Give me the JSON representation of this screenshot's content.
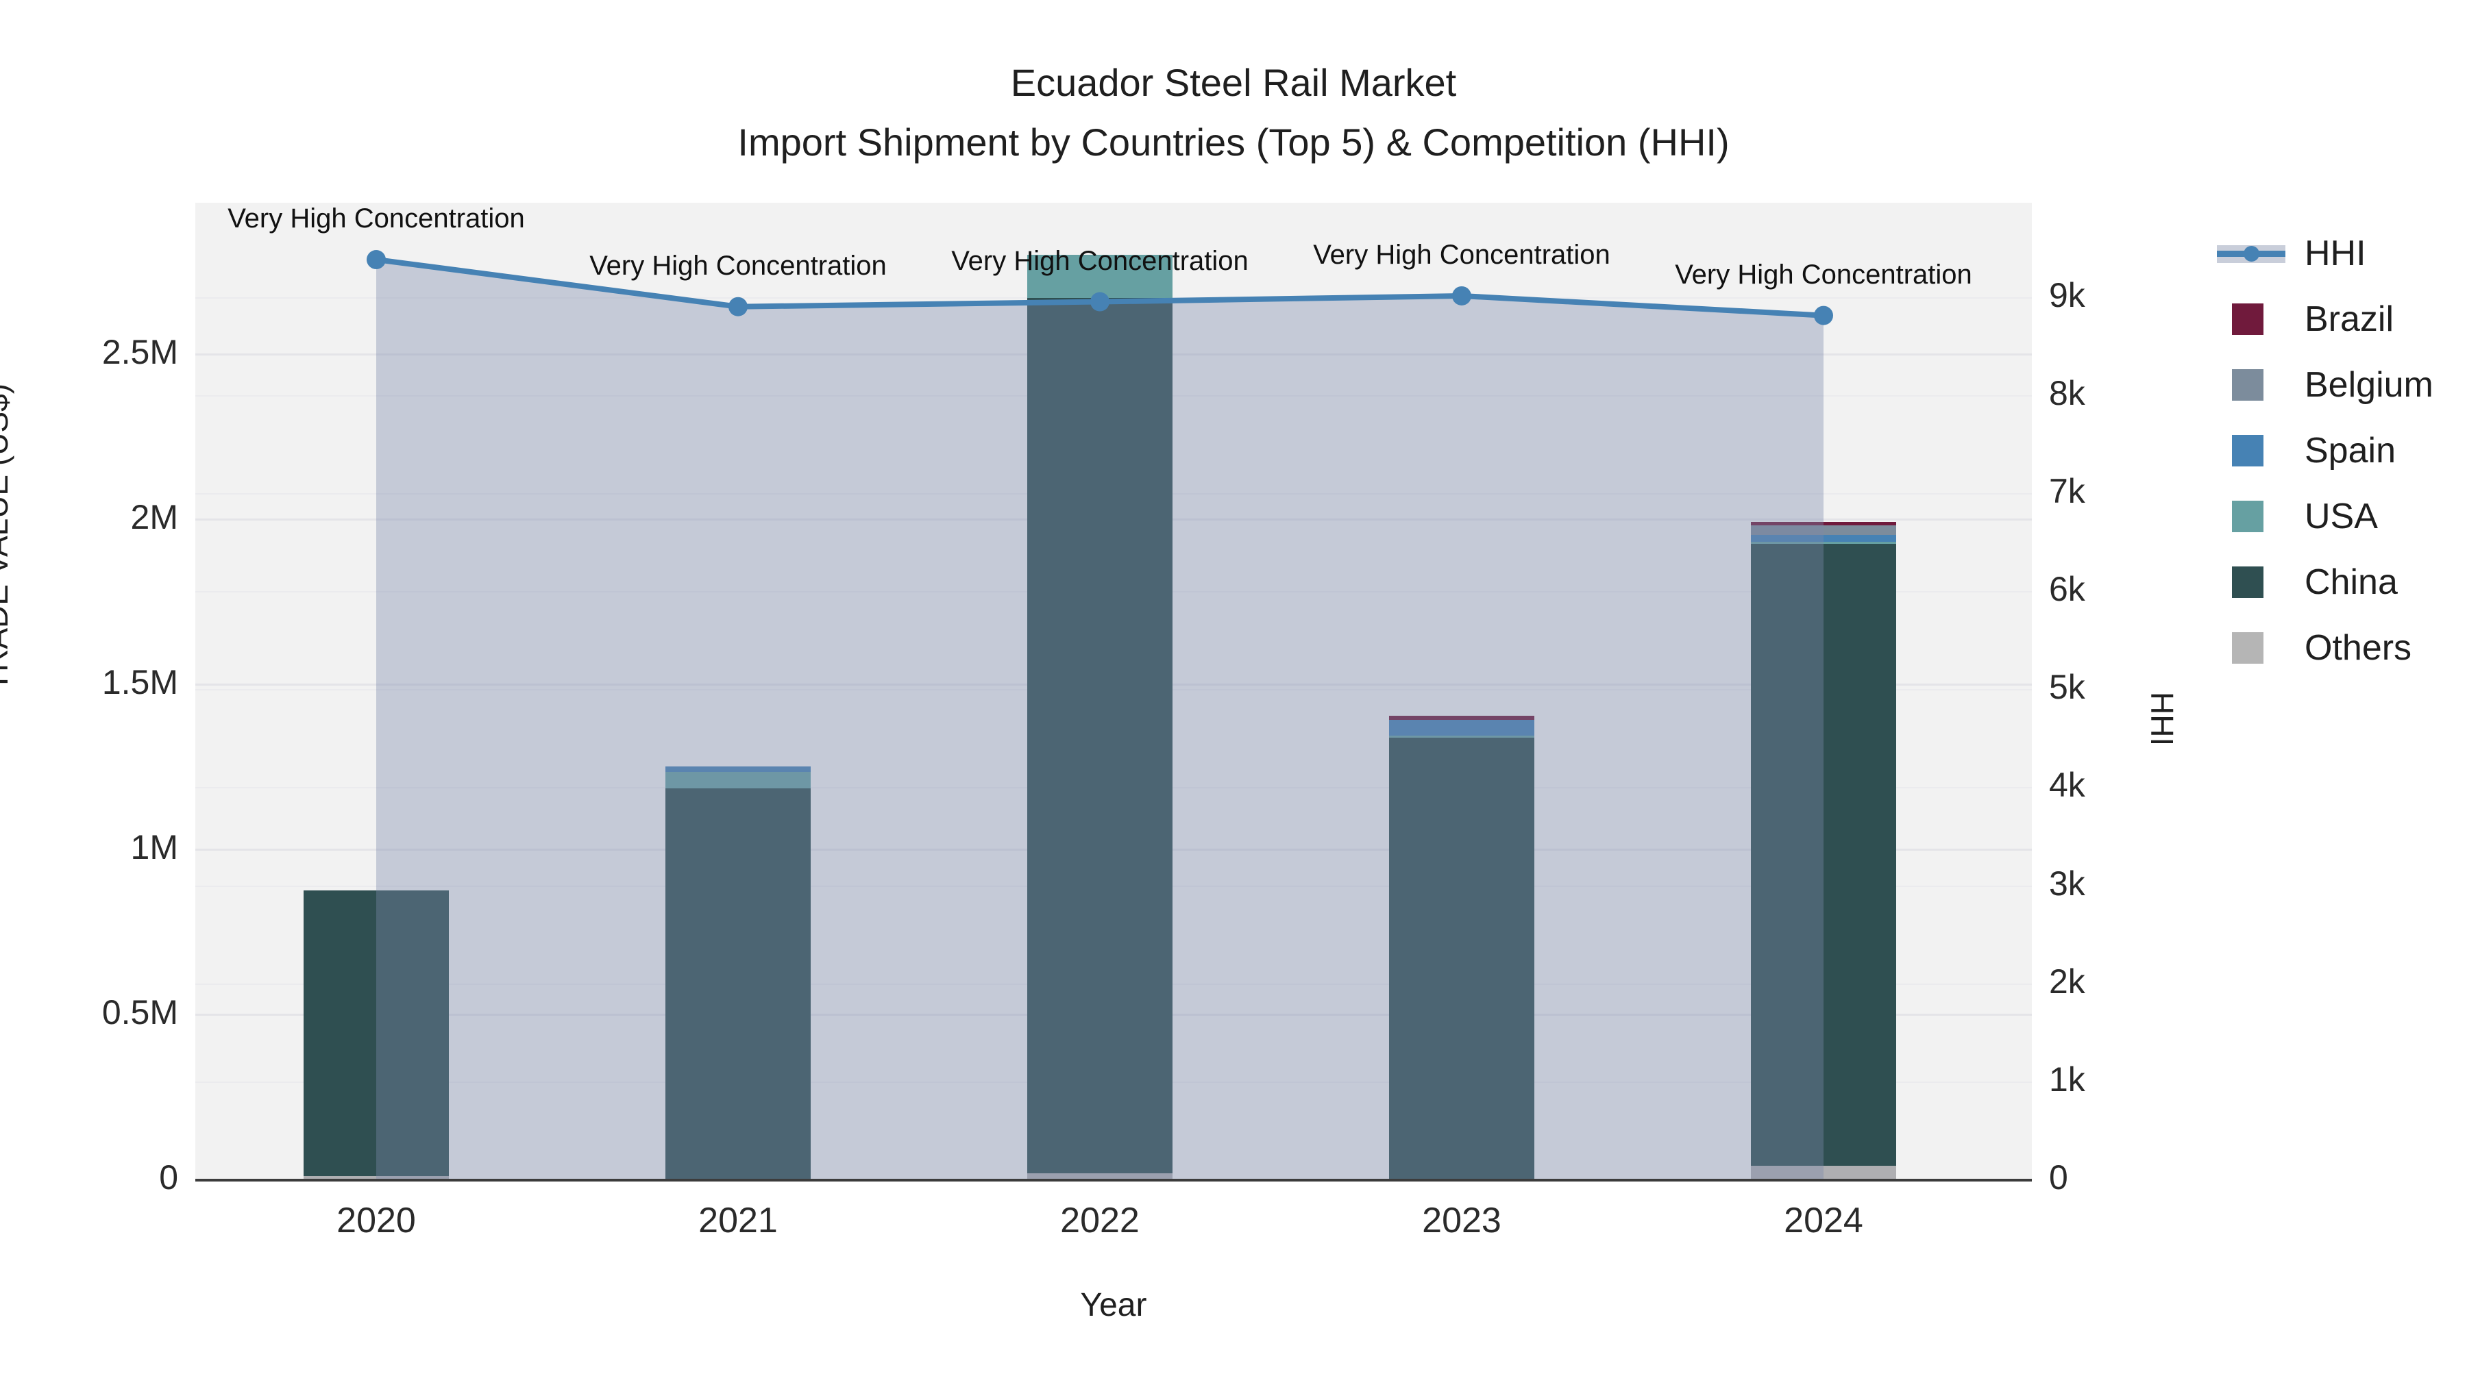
{
  "title": {
    "line1": "Ecuador Steel Rail Market",
    "line2": "Import Shipment by Countries (Top 5) & Competition (HHI)"
  },
  "axes": {
    "left": {
      "title": "TRADE VALUE (US$)",
      "ticks": [
        {
          "label": "0",
          "value": 0
        },
        {
          "label": "0.5M",
          "value": 500000
        },
        {
          "label": "1M",
          "value": 1000000
        },
        {
          "label": "1.5M",
          "value": 1500000
        },
        {
          "label": "2M",
          "value": 2000000
        },
        {
          "label": "2.5M",
          "value": 2500000
        }
      ],
      "max": 2960000
    },
    "right": {
      "title": "HHI",
      "ticks": [
        {
          "label": "0",
          "value": 0
        },
        {
          "label": "1k",
          "value": 1000
        },
        {
          "label": "2k",
          "value": 2000
        },
        {
          "label": "3k",
          "value": 3000
        },
        {
          "label": "4k",
          "value": 4000
        },
        {
          "label": "5k",
          "value": 5000
        },
        {
          "label": "6k",
          "value": 6000
        },
        {
          "label": "7k",
          "value": 7000
        },
        {
          "label": "8k",
          "value": 8000
        },
        {
          "label": "9k",
          "value": 9000
        }
      ],
      "max": 9970
    },
    "bottom": {
      "title": "Year"
    }
  },
  "chart_data": {
    "type": "bar",
    "subtype": "stacked-bars-with-line-overlay",
    "categories": [
      "2020",
      "2021",
      "2022",
      "2023",
      "2024"
    ],
    "stack_order_bottom_to_top": [
      "Others",
      "China",
      "USA",
      "Spain",
      "Belgium",
      "Brazil"
    ],
    "series": [
      {
        "name": "Others",
        "color": "#afafb2",
        "values": [
          13000,
          0,
          20000,
          0,
          43000
        ]
      },
      {
        "name": "China",
        "color": "#2f4f51",
        "values": [
          865000,
          1187000,
          2652000,
          1340000,
          1884000
        ]
      },
      {
        "name": "USA",
        "color": "#66a0a2",
        "values": [
          0,
          49000,
          131000,
          6000,
          7000
        ]
      },
      {
        "name": "Spain",
        "color": "#4682b4",
        "values": [
          0,
          17000,
          0,
          47000,
          19000
        ]
      },
      {
        "name": "Belgium",
        "color": "#7c8c9c",
        "values": [
          0,
          0,
          0,
          0,
          29000
        ]
      },
      {
        "name": "Brazil",
        "color": "#701a3c",
        "values": [
          0,
          0,
          0,
          14000,
          12000
        ]
      }
    ],
    "line_series": {
      "name": "HHI",
      "color": "#4682b4",
      "fill_color": "rgba(124,138,172,0.38)",
      "values": [
        9390,
        8910,
        8960,
        9020,
        8820
      ]
    },
    "annotations": [
      "Very High Concentration",
      "Very High Concentration",
      "Very High Concentration",
      "Very High Concentration",
      "Very High Concentration"
    ],
    "title": "Ecuador Steel Rail Market — Import Shipment by Countries (Top 5) & Competition (HHI)",
    "xlabel": "Year",
    "ylabel": "TRADE VALUE (US$)",
    "ylabel_right": "HHI",
    "ylim": [
      0,
      2960000
    ],
    "ylim_right": [
      0,
      9970
    ],
    "grid": true,
    "legend_position": "right"
  },
  "legend": {
    "items": [
      {
        "label": "HHI",
        "type": "line",
        "color": "#4682b4"
      },
      {
        "label": "Brazil",
        "type": "swatch",
        "color": "#701a3c"
      },
      {
        "label": "Belgium",
        "type": "swatch",
        "color": "#7c8c9c"
      },
      {
        "label": "Spain",
        "type": "swatch",
        "color": "#4682b4"
      },
      {
        "label": "USA",
        "type": "swatch",
        "color": "#66a0a2"
      },
      {
        "label": "China",
        "type": "swatch",
        "color": "#2f4f51"
      },
      {
        "label": "Others",
        "type": "swatch",
        "color": "#b5b5b5"
      }
    ]
  },
  "colors": {
    "plot_bg": "#f2f2f2",
    "paper_bg": "#ffffff",
    "grid_major": "#e4e4e8",
    "grid_minor": "#ebebee",
    "axis_line": "#3c3c3c",
    "hhi_line": "#4682b4",
    "hhi_fill": "rgba(124,138,172,0.38)"
  }
}
